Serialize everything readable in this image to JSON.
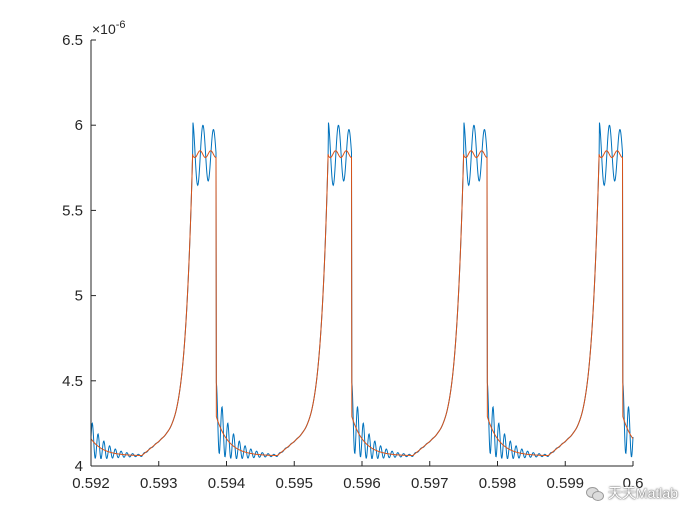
{
  "chart_data": {
    "type": "line",
    "xlim": [
      0.592,
      0.6
    ],
    "ylim": [
      4.0,
      6.5
    ],
    "x_ticks": [
      0.592,
      0.593,
      0.594,
      0.595,
      0.596,
      0.597,
      0.598,
      0.599,
      0.6
    ],
    "x_tick_labels": [
      "0.592",
      "0.593",
      "0.594",
      "0.595",
      "0.596",
      "0.597",
      "0.598",
      "0.599",
      "0.6"
    ],
    "y_ticks": [
      4.0,
      4.5,
      5.0,
      5.5,
      6.0,
      6.5
    ],
    "y_tick_labels": [
      "4",
      "4.5",
      "5",
      "5.5",
      "6",
      "6.5"
    ],
    "y_exponent_label": "×10",
    "y_exponent_power": "-6",
    "grid": false,
    "period": 0.002,
    "colors": {
      "series_1": "#0072BD",
      "series_2": "#D95319",
      "axis": "#262626"
    },
    "series": [
      {
        "style": "oscillating",
        "color": "#0072BD",
        "pulse_starts": [
          0.5935,
          0.5955,
          0.5975,
          0.5995
        ],
        "pulse_ends": [
          0.59385,
          0.59585,
          0.59785,
          0.59985
        ],
        "peak": 6.08,
        "plateau_mean": 5.84,
        "baseline": 4.05
      },
      {
        "style": "smooth",
        "color": "#D95319",
        "pulse_starts": [
          0.5935,
          0.5955,
          0.5975,
          0.5995
        ],
        "pulse_ends": [
          0.59385,
          0.59585,
          0.59785,
          0.59985
        ],
        "plateau": 5.83,
        "baseline": 4.06
      }
    ]
  },
  "watermark": {
    "text": "天天Matlab",
    "icon": "wechat-icon"
  }
}
